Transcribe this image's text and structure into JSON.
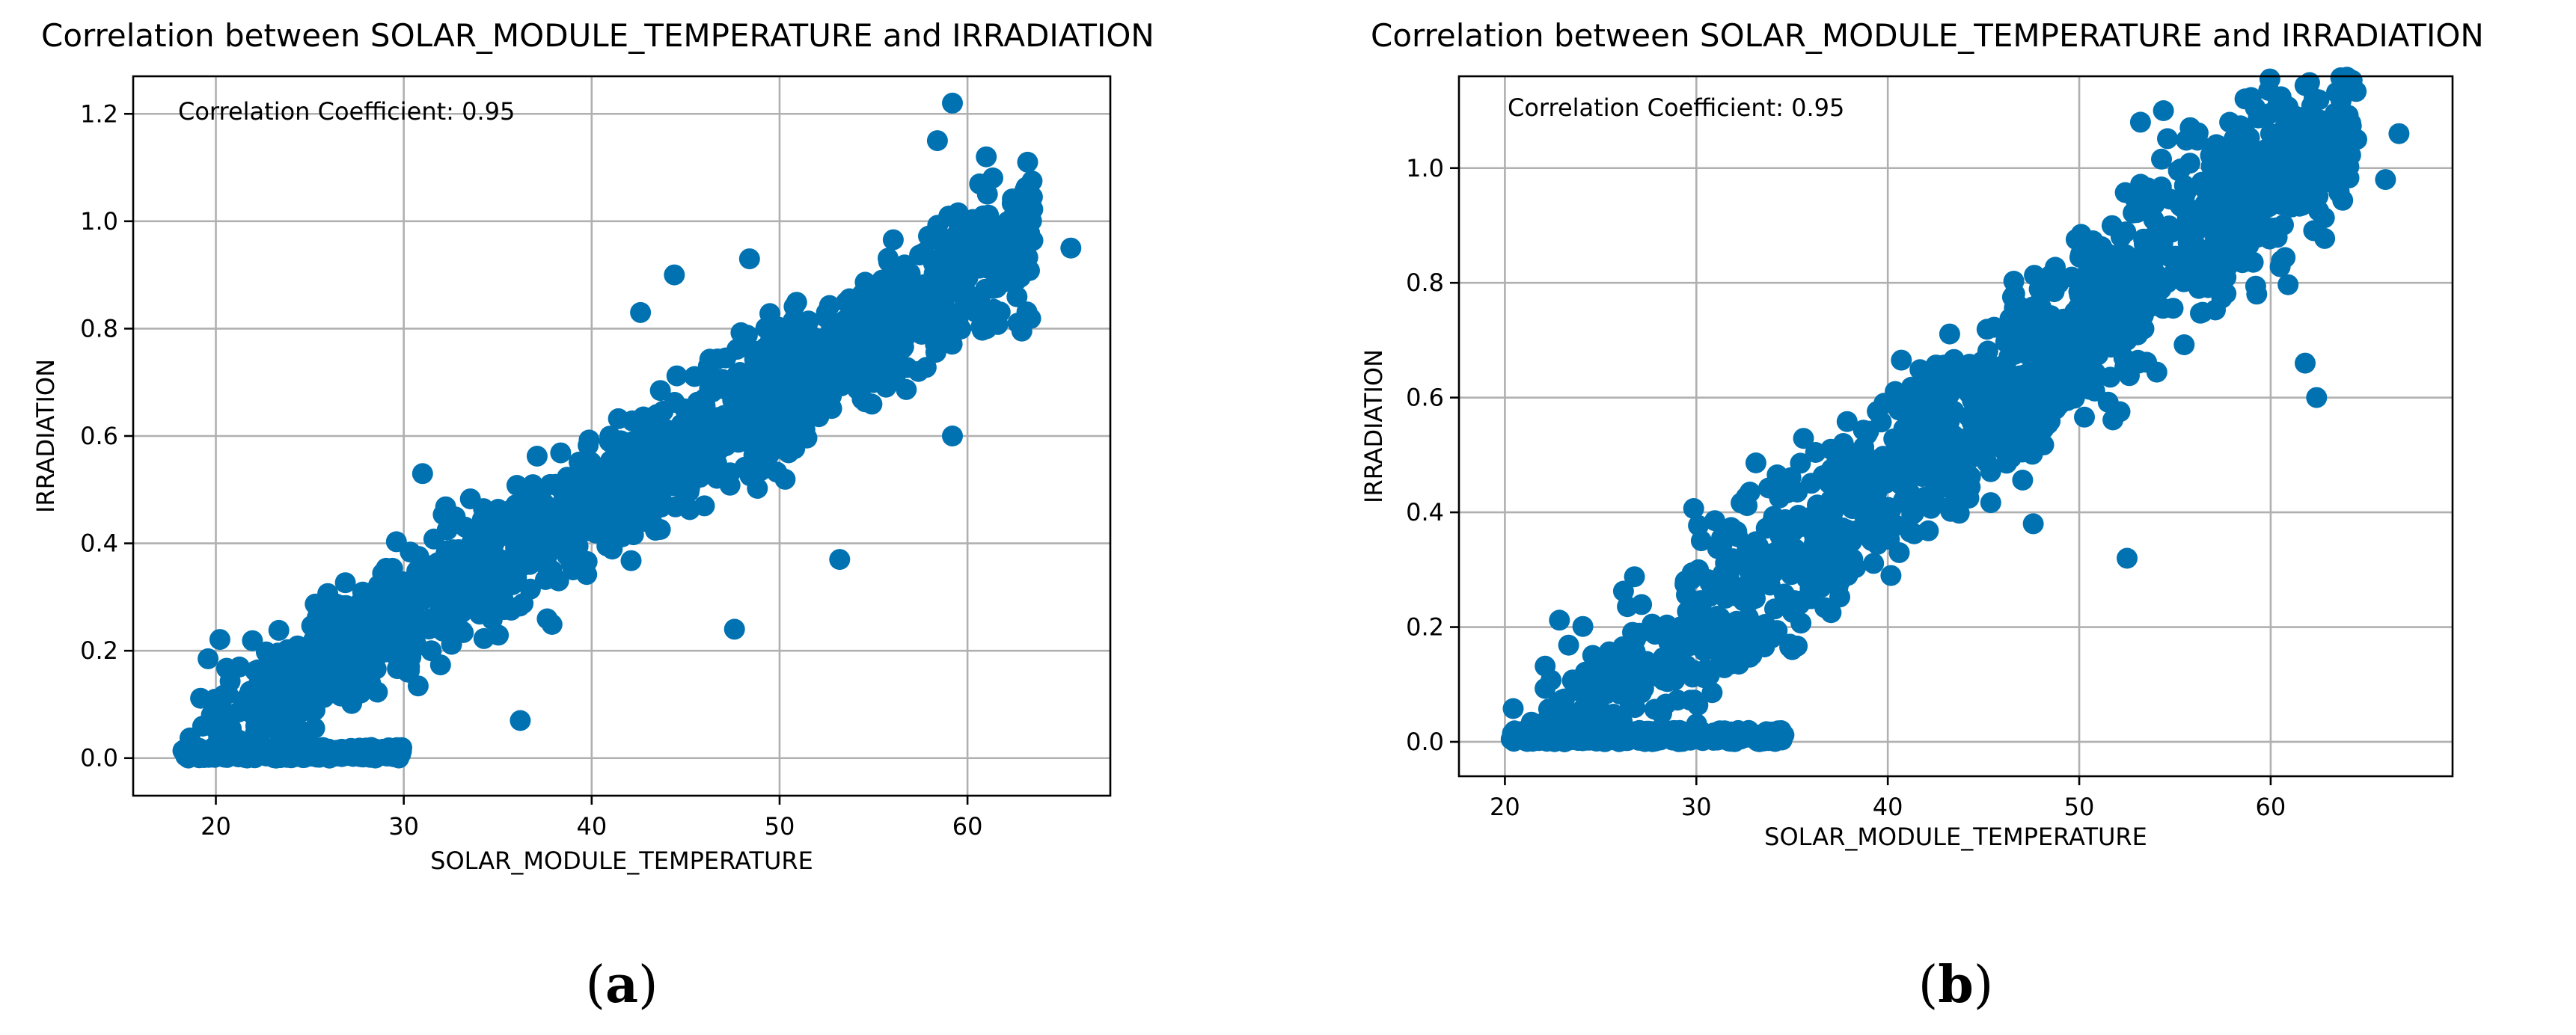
{
  "colors": {
    "points": "#0072b2",
    "grid": "#b0b0b0",
    "axis": "#000000"
  },
  "chart_data": [
    {
      "type": "scatter",
      "panel": "a",
      "caption_open": "(",
      "caption_letter": "a",
      "caption_close": ")",
      "title": "Correlation between SOLAR_MODULE_TEMPERATURE and IRRADIATION",
      "xlabel": "SOLAR_MODULE_TEMPERATURE",
      "ylabel": "IRRADIATION",
      "annotation": "Correlation Coefficient: 0.95",
      "xlim": [
        15.6,
        67.6
      ],
      "ylim": [
        -0.07,
        1.27
      ],
      "xticks": [
        20,
        30,
        40,
        50,
        60
      ],
      "xtick_labels": [
        "20",
        "30",
        "40",
        "50",
        "60"
      ],
      "yticks": [
        0.0,
        0.2,
        0.4,
        0.6,
        0.8,
        1.0,
        1.2
      ],
      "ytick_labels": [
        "0.0",
        "0.2",
        "0.4",
        "0.6",
        "0.8",
        "1.0",
        "1.2"
      ],
      "grid": true,
      "outliers": [
        [
          59.2,
          1.22
        ],
        [
          58.4,
          1.15
        ],
        [
          65.5,
          0.95
        ],
        [
          63.2,
          1.11
        ],
        [
          31.0,
          0.53
        ],
        [
          36.2,
          0.07
        ],
        [
          47.6,
          0.24
        ],
        [
          59.2,
          0.6
        ],
        [
          44.4,
          0.9
        ],
        [
          42.6,
          0.83
        ],
        [
          48.4,
          0.93
        ],
        [
          53.2,
          0.37
        ],
        [
          61.0,
          1.12
        ]
      ],
      "cloud": {
        "n_points": 1400,
        "x_min": 18.2,
        "x_max": 63.5,
        "slope": 0.0214,
        "x_at_zero": 17.9,
        "spread": 0.085
      }
    },
    {
      "type": "scatter",
      "panel": "b",
      "caption_open": "(",
      "caption_letter": "b",
      "caption_close": ")",
      "title": "Correlation between SOLAR_MODULE_TEMPERATURE and IRRADIATION",
      "xlabel": "SOLAR_MODULE_TEMPERATURE",
      "ylabel": "IRRADIATION",
      "annotation": "Correlation Coefficient: 0.95",
      "xlim": [
        17.6,
        69.5
      ],
      "ylim": [
        -0.06,
        1.16
      ],
      "xticks": [
        20,
        30,
        40,
        50,
        60
      ],
      "xtick_labels": [
        "20",
        "30",
        "40",
        "50",
        "60"
      ],
      "yticks": [
        0.0,
        0.2,
        0.4,
        0.6,
        0.8,
        1.0
      ],
      "ytick_labels": [
        "0.0",
        "0.2",
        "0.4",
        "0.6",
        "0.8",
        "1.0"
      ],
      "grid": true,
      "outliers": [
        [
          54.4,
          1.1
        ],
        [
          53.2,
          1.08
        ],
        [
          66.7,
          1.06
        ],
        [
          66.0,
          0.98
        ],
        [
          62.4,
          0.6
        ],
        [
          61.8,
          0.66
        ],
        [
          52.5,
          0.32
        ],
        [
          47.6,
          0.38
        ],
        [
          60.0,
          1.06
        ],
        [
          62.8,
          1.08
        ],
        [
          57.2,
          1.04
        ]
      ],
      "cloud": {
        "n_points": 1400,
        "x_min": 20.3,
        "x_max": 64.5,
        "slope": 0.0262,
        "x_at_zero": 22.6,
        "spread": 0.11
      }
    }
  ]
}
